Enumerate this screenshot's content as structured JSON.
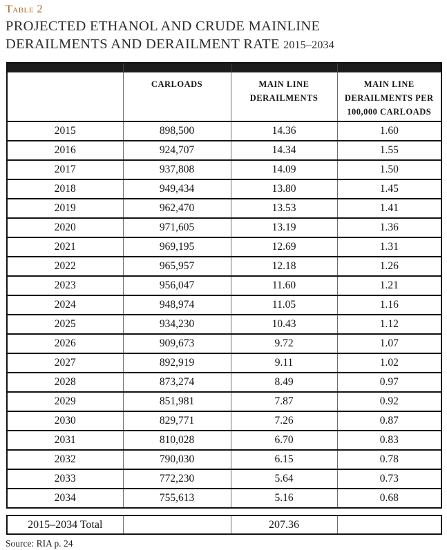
{
  "page": {
    "table_label": "Table 2",
    "title_line1": "PROJECTED ETHANOL AND CRUDE MAINLINE",
    "title_line2": "DERAILMENTS AND DERAILMENT RATE",
    "title_years": "2015–2034",
    "source": "Source: RIA p. 24",
    "accent_color": "#a8631f"
  },
  "table": {
    "columns": [
      "",
      "CARLOADS",
      "MAIN LINE DERAILMENTS",
      "MAIN LINE DERAILMENTS PER 100,000 CARLOADS"
    ],
    "rows": [
      [
        "2015",
        "898,500",
        "14.36",
        "1.60"
      ],
      [
        "2016",
        "924,707",
        "14.34",
        "1.55"
      ],
      [
        "2017",
        "937,808",
        "14.09",
        "1.50"
      ],
      [
        "2018",
        "949,434",
        "13.80",
        "1.45"
      ],
      [
        "2019",
        "962,470",
        "13.53",
        "1.41"
      ],
      [
        "2020",
        "971,605",
        "13.19",
        "1.36"
      ],
      [
        "2021",
        "969,195",
        "12.69",
        "1.31"
      ],
      [
        "2022",
        "965,957",
        "12.18",
        "1.26"
      ],
      [
        "2023",
        "956,047",
        "11.60",
        "1.21"
      ],
      [
        "2024",
        "948,974",
        "11.05",
        "1.16"
      ],
      [
        "2025",
        "934,230",
        "10.43",
        "1.12"
      ],
      [
        "2026",
        "909,673",
        "9.72",
        "1.07"
      ],
      [
        "2027",
        "892,919",
        "9.11",
        "1.02"
      ],
      [
        "2028",
        "873,274",
        "8.49",
        "0.97"
      ],
      [
        "2029",
        "851,981",
        "7.87",
        "0.92"
      ],
      [
        "2030",
        "829,771",
        "7.26",
        "0.87"
      ],
      [
        "2031",
        "810,028",
        "6.70",
        "0.83"
      ],
      [
        "2032",
        "790,030",
        "6.15",
        "0.78"
      ],
      [
        "2033",
        "772,230",
        "5.64",
        "0.73"
      ],
      [
        "2034",
        "755,613",
        "5.16",
        "0.68"
      ]
    ],
    "totals": {
      "label": "2015–2034 Total",
      "carloads": "",
      "derailments": "207.36",
      "rate": ""
    }
  }
}
